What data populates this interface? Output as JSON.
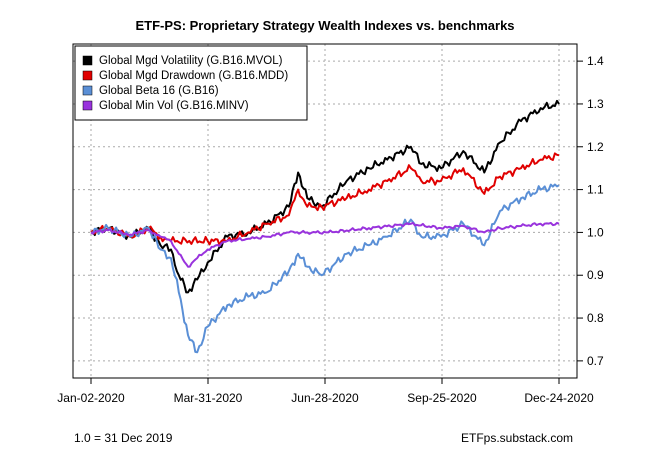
{
  "chart_data": {
    "type": "line",
    "title": "ETF-PS: Proprietary Strategy Wealth Indexes vs. benchmarks",
    "xlabel": "",
    "ylabel": "",
    "x_ticks": [
      "Jan-02-2020",
      "Mar-31-2020",
      "Jun-28-2020",
      "Sep-25-2020",
      "Dec-24-2020"
    ],
    "x_range": [
      "2020-01-02",
      "2020-12-24"
    ],
    "y_ticks": [
      "0.7",
      "0.8",
      "0.9",
      "1.0",
      "1.1",
      "1.2",
      "1.3",
      "1.4"
    ],
    "ylim": [
      0.66,
      1.44
    ],
    "grid": true,
    "legend_position": "top-left",
    "series": [
      {
        "name": "Global Mgd Volatility (G.B16.MVOL)",
        "color": "#000000",
        "points": [
          [
            "2020-01-02",
            1.0
          ],
          [
            "2020-01-15",
            1.01
          ],
          [
            "2020-02-01",
            0.99
          ],
          [
            "2020-02-15",
            1.01
          ],
          [
            "2020-02-24",
            0.97
          ],
          [
            "2020-03-03",
            0.96
          ],
          [
            "2020-03-09",
            0.9
          ],
          [
            "2020-03-16",
            0.86
          ],
          [
            "2020-03-23",
            0.89
          ],
          [
            "2020-03-31",
            0.93
          ],
          [
            "2020-04-15",
            0.99
          ],
          [
            "2020-05-01",
            1.0
          ],
          [
            "2020-05-15",
            1.02
          ],
          [
            "2020-06-01",
            1.06
          ],
          [
            "2020-06-08",
            1.14
          ],
          [
            "2020-06-15",
            1.08
          ],
          [
            "2020-06-26",
            1.06
          ],
          [
            "2020-07-15",
            1.12
          ],
          [
            "2020-08-01",
            1.15
          ],
          [
            "2020-08-15",
            1.17
          ],
          [
            "2020-09-02",
            1.2
          ],
          [
            "2020-09-10",
            1.16
          ],
          [
            "2020-09-25",
            1.15
          ],
          [
            "2020-10-12",
            1.19
          ],
          [
            "2020-10-28",
            1.14
          ],
          [
            "2020-11-09",
            1.21
          ],
          [
            "2020-11-25",
            1.26
          ],
          [
            "2020-12-10",
            1.29
          ],
          [
            "2020-12-24",
            1.3
          ]
        ]
      },
      {
        "name": "Global Mgd Drawdown (G.B16.MDD)",
        "color": "#e00000",
        "points": [
          [
            "2020-01-02",
            1.0
          ],
          [
            "2020-01-15",
            1.01
          ],
          [
            "2020-02-01",
            0.99
          ],
          [
            "2020-02-15",
            1.01
          ],
          [
            "2020-02-24",
            0.99
          ],
          [
            "2020-03-03",
            0.98
          ],
          [
            "2020-03-31",
            0.98
          ],
          [
            "2020-04-15",
            0.98
          ],
          [
            "2020-05-01",
            1.0
          ],
          [
            "2020-05-15",
            1.02
          ],
          [
            "2020-06-01",
            1.04
          ],
          [
            "2020-06-08",
            1.1
          ],
          [
            "2020-06-15",
            1.06
          ],
          [
            "2020-06-26",
            1.06
          ],
          [
            "2020-07-15",
            1.08
          ],
          [
            "2020-08-01",
            1.1
          ],
          [
            "2020-08-15",
            1.12
          ],
          [
            "2020-09-02",
            1.15
          ],
          [
            "2020-09-10",
            1.12
          ],
          [
            "2020-09-25",
            1.12
          ],
          [
            "2020-10-12",
            1.15
          ],
          [
            "2020-10-28",
            1.09
          ],
          [
            "2020-11-09",
            1.13
          ],
          [
            "2020-11-25",
            1.15
          ],
          [
            "2020-12-10",
            1.17
          ],
          [
            "2020-12-24",
            1.18
          ]
        ]
      },
      {
        "name": "Global Beta 16 (G.B16)",
        "color": "#5a8fd6",
        "points": [
          [
            "2020-01-02",
            1.0
          ],
          [
            "2020-01-15",
            1.01
          ],
          [
            "2020-02-01",
            0.99
          ],
          [
            "2020-02-15",
            1.01
          ],
          [
            "2020-02-24",
            0.96
          ],
          [
            "2020-03-03",
            0.94
          ],
          [
            "2020-03-09",
            0.86
          ],
          [
            "2020-03-16",
            0.76
          ],
          [
            "2020-03-23",
            0.72
          ],
          [
            "2020-03-31",
            0.78
          ],
          [
            "2020-04-15",
            0.83
          ],
          [
            "2020-05-01",
            0.85
          ],
          [
            "2020-05-15",
            0.86
          ],
          [
            "2020-06-01",
            0.91
          ],
          [
            "2020-06-08",
            0.95
          ],
          [
            "2020-06-15",
            0.92
          ],
          [
            "2020-06-26",
            0.9
          ],
          [
            "2020-07-15",
            0.95
          ],
          [
            "2020-08-01",
            0.97
          ],
          [
            "2020-08-15",
            0.99
          ],
          [
            "2020-09-02",
            1.03
          ],
          [
            "2020-09-10",
            0.99
          ],
          [
            "2020-09-25",
            0.99
          ],
          [
            "2020-10-12",
            1.02
          ],
          [
            "2020-10-28",
            0.97
          ],
          [
            "2020-11-09",
            1.05
          ],
          [
            "2020-11-25",
            1.08
          ],
          [
            "2020-12-10",
            1.1
          ],
          [
            "2020-12-24",
            1.11
          ]
        ]
      },
      {
        "name": "Global Min Vol (G.B16.MINV)",
        "color": "#9933dd",
        "points": [
          [
            "2020-01-02",
            1.0
          ],
          [
            "2020-01-15",
            1.005
          ],
          [
            "2020-02-01",
            0.995
          ],
          [
            "2020-02-15",
            1.005
          ],
          [
            "2020-02-24",
            0.99
          ],
          [
            "2020-03-03",
            0.98
          ],
          [
            "2020-03-09",
            0.95
          ],
          [
            "2020-03-16",
            0.92
          ],
          [
            "2020-03-23",
            0.94
          ],
          [
            "2020-03-31",
            0.96
          ],
          [
            "2020-04-15",
            0.98
          ],
          [
            "2020-05-01",
            0.985
          ],
          [
            "2020-05-15",
            0.99
          ],
          [
            "2020-06-01",
            1.0
          ],
          [
            "2020-06-15",
            1.0
          ],
          [
            "2020-07-01",
            1.0
          ],
          [
            "2020-08-01",
            1.01
          ],
          [
            "2020-09-02",
            1.02
          ],
          [
            "2020-09-25",
            1.01
          ],
          [
            "2020-10-12",
            1.015
          ],
          [
            "2020-10-28",
            1.0
          ],
          [
            "2020-11-09",
            1.01
          ],
          [
            "2020-11-25",
            1.015
          ],
          [
            "2020-12-10",
            1.02
          ],
          [
            "2020-12-24",
            1.02
          ]
        ]
      }
    ]
  },
  "footer": {
    "left": "1.0 = 31 Dec 2019",
    "right": "ETFps.substack.com"
  }
}
